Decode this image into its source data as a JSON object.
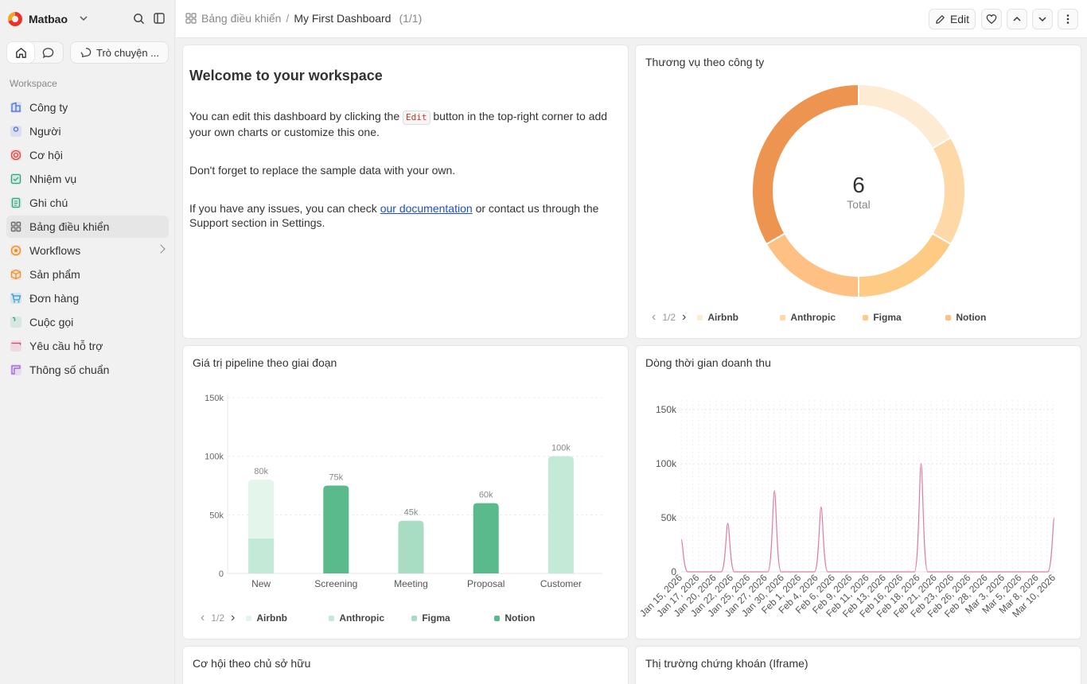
{
  "sidebar": {
    "workspace_name": "Matbao",
    "chat_label": "Trò chuyện ...",
    "section_label": "Workspace",
    "items": [
      {
        "label": "Công ty",
        "icon": "building-icon",
        "color": "#4a6fd6"
      },
      {
        "label": "Người",
        "icon": "user-icon",
        "color": "#4a6fd6"
      },
      {
        "label": "Cơ hội",
        "icon": "target-icon",
        "color": "#e0443a"
      },
      {
        "label": "Nhiệm vụ",
        "icon": "checkbox-icon",
        "color": "#2eaa7a"
      },
      {
        "label": "Ghi chú",
        "icon": "note-icon",
        "color": "#2eaa7a"
      },
      {
        "label": "Bảng điều khiển",
        "icon": "dashboard-icon",
        "color": "#666666"
      },
      {
        "label": "Workflows",
        "icon": "workflow-icon",
        "color": "#f08a1e"
      },
      {
        "label": "Sản phẩm",
        "icon": "box-icon",
        "color": "#f08a1e"
      },
      {
        "label": "Đơn hàng",
        "icon": "cart-icon",
        "color": "#2a9ad6"
      },
      {
        "label": "Cuộc gọi",
        "icon": "phone-icon",
        "color": "#2eaa7a"
      },
      {
        "label": "Yêu cầu hỗ trợ",
        "icon": "ticket-icon",
        "color": "#d6447a"
      },
      {
        "label": "Thông số chuẩn",
        "icon": "ruler-icon",
        "color": "#9b59d6"
      }
    ]
  },
  "topbar": {
    "breadcrumb_parent": "Bảng điều khiển",
    "breadcrumb_sep": "/",
    "breadcrumb_current": "My First Dashboard",
    "count": "(1/1)",
    "edit_label": "Edit"
  },
  "welcome": {
    "title": "Welcome to your workspace",
    "p1_before": "You can edit this dashboard by clicking the",
    "p1_code": "Edit",
    "p1_after": "button in the top-right corner to add your own charts or customize this one.",
    "p2": "Don't forget to replace the sample data with your own.",
    "p3_before": "If you have any issues, you can check",
    "p3_link": "our documentation",
    "p3_after": "or contact us through the Support section in Settings."
  },
  "cards": {
    "owner_title": "Cơ hội theo chủ sở hữu",
    "stock_title": "Thị trường chứng khoán (Iframe)"
  },
  "chart_data": [
    {
      "type": "pie",
      "title": "Thương vụ theo công ty",
      "center_value": "6",
      "center_label": "Total",
      "slices": [
        {
          "label": "Airbnb",
          "value": 1,
          "color": "#feebd3"
        },
        {
          "label": "Anthropic",
          "value": 1,
          "color": "#fed8a6"
        },
        {
          "label": "Figma",
          "value": 1,
          "color": "#fecb84"
        },
        {
          "label": "Notion",
          "value": 1,
          "color": "#fec083"
        },
        {
          "label": "",
          "value": 2,
          "color": "#ec9450"
        }
      ],
      "legend": [
        "Airbnb",
        "Anthropic",
        "Figma",
        "Notion"
      ],
      "legend_page": "1/2"
    },
    {
      "type": "bar",
      "title": "Giá trị pipeline theo giai đoạn",
      "categories": [
        "New",
        "Screening",
        "Meeting",
        "Proposal",
        "Customer"
      ],
      "series": [
        {
          "name": "Airbnb",
          "color": "#e4f5ec",
          "values": [
            50,
            0,
            0,
            0,
            0
          ]
        },
        {
          "name": "Anthropic",
          "color": "#c3ead6",
          "values": [
            30,
            0,
            0,
            0,
            100
          ]
        },
        {
          "name": "Figma",
          "color": "#a8dcc3",
          "values": [
            0,
            0,
            45,
            0,
            0
          ]
        },
        {
          "name": "Notion",
          "color": "#5aba8c",
          "values": [
            0,
            75,
            0,
            60,
            0
          ]
        }
      ],
      "totals": [
        "80k",
        "75k",
        "45k",
        "60k",
        "100k"
      ],
      "yticks": [
        "0",
        "50k",
        "100k",
        "150k"
      ],
      "ylim": [
        0,
        150
      ],
      "legend": [
        "Airbnb",
        "Anthropic",
        "Figma",
        "Notion"
      ],
      "legend_page": "1/2"
    },
    {
      "type": "line",
      "title": "Dòng thời gian doanh thu",
      "color": "#e07d9c",
      "x_labels": [
        "Jan 15, 2026",
        "Jan 17, 2026",
        "Jan 20, 2026",
        "Jan 22, 2026",
        "Jan 25, 2026",
        "Jan 27, 2026",
        "Jan 30, 2026",
        "Feb 1, 2026",
        "Feb 4, 2026",
        "Feb 6, 2026",
        "Feb 9, 2026",
        "Feb 11, 2026",
        "Feb 13, 2026",
        "Feb 16, 2026",
        "Feb 18, 2026",
        "Feb 21, 2026",
        "Feb 23, 2026",
        "Feb 26, 2026",
        "Feb 28, 2026",
        "Mar 3, 2026",
        "Mar 5, 2026",
        "Mar 8, 2026",
        "Mar 10, 2026"
      ],
      "yticks": [
        "0",
        "50k",
        "100k",
        "150k"
      ],
      "ylim": [
        0,
        150
      ],
      "x_range": [
        "Jan 15, 2026",
        "Mar 12, 2026"
      ],
      "peaks": [
        {
          "date": "Jan 15, 2026",
          "value": 30
        },
        {
          "date": "Jan 22, 2026",
          "value": 45
        },
        {
          "date": "Jan 29, 2026",
          "value": 75
        },
        {
          "date": "Feb 5, 2026",
          "value": 60
        },
        {
          "date": "Feb 20, 2026",
          "value": 100
        },
        {
          "date": "Mar 12, 2026",
          "value": 50
        }
      ]
    }
  ]
}
